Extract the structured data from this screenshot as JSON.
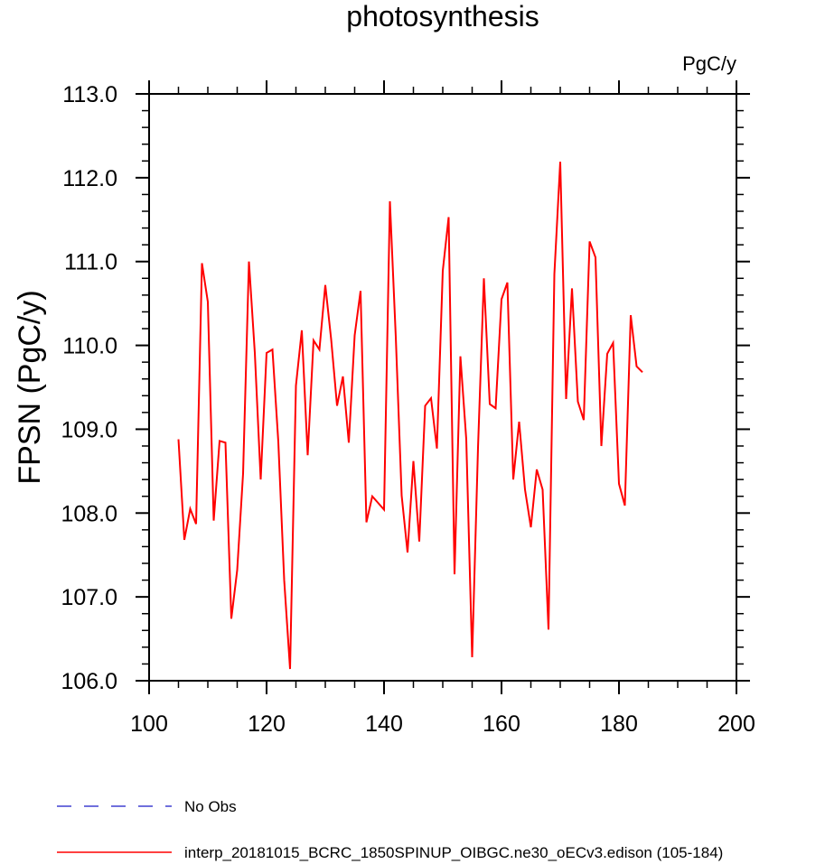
{
  "chart_data": {
    "type": "line",
    "title": "photosynthesis",
    "units_label": "PgC/y",
    "ylabel": "FPSN  (PgC/y)",
    "xlabel": "",
    "xlim": [
      100,
      200
    ],
    "ylim": [
      106.0,
      113.0
    ],
    "x_ticks": [
      100,
      120,
      140,
      160,
      180,
      200
    ],
    "y_ticks": [
      106.0,
      107.0,
      108.0,
      109.0,
      110.0,
      111.0,
      112.0,
      113.0
    ],
    "x_tick_labels": [
      "100",
      "120",
      "140",
      "160",
      "180",
      "200"
    ],
    "y_tick_labels": [
      "106.0",
      "107.0",
      "108.0",
      "109.0",
      "110.0",
      "111.0",
      "112.0",
      "113.0"
    ],
    "grid": false,
    "legend_position": "bottom-left",
    "series": [
      {
        "name": "interp_20181015_BCRC_1850SPINUP_OIBGC.ne30_oECv3.edison (105-184)",
        "color": "#ff0000",
        "style": "solid",
        "x": [
          105,
          106,
          107,
          108,
          109,
          110,
          111,
          112,
          113,
          114,
          115,
          116,
          117,
          118,
          119,
          120,
          121,
          122,
          123,
          124,
          125,
          126,
          127,
          128,
          129,
          130,
          131,
          132,
          133,
          134,
          135,
          136,
          137,
          138,
          139,
          140,
          141,
          142,
          143,
          144,
          145,
          146,
          147,
          148,
          149,
          150,
          151,
          152,
          153,
          154,
          155,
          156,
          157,
          158,
          159,
          160,
          161,
          162,
          163,
          164,
          165,
          166,
          167,
          168,
          169,
          170,
          171,
          172,
          173,
          174,
          175,
          176,
          177,
          178,
          179,
          180,
          181,
          182,
          183,
          184
        ],
        "values": [
          108.88,
          107.68,
          108.05,
          107.87,
          110.98,
          110.52,
          107.91,
          108.86,
          108.84,
          106.74,
          107.32,
          108.47,
          111.0,
          109.91,
          108.4,
          109.91,
          109.95,
          108.85,
          107.2,
          106.14,
          109.52,
          110.18,
          108.69,
          110.06,
          109.95,
          110.72,
          110.07,
          109.28,
          109.63,
          108.84,
          110.12,
          110.65,
          107.89,
          108.2,
          108.12,
          108.04,
          111.72,
          110.1,
          108.21,
          107.53,
          108.62,
          107.66,
          109.28,
          109.37,
          108.77,
          110.89,
          111.53,
          107.27,
          109.87,
          108.88,
          106.28,
          108.78,
          110.8,
          109.3,
          109.25,
          110.55,
          110.75,
          108.4,
          109.09,
          108.28,
          107.83,
          108.52,
          108.28,
          106.61,
          110.85,
          112.19,
          109.36,
          110.68,
          109.33,
          109.11,
          111.24,
          111.05,
          108.8,
          109.9,
          110.03,
          108.35,
          108.09,
          110.36,
          109.75,
          109.68
        ]
      },
      {
        "name": "No Obs",
        "color": "#4040d0",
        "style": "dashed",
        "x": [],
        "values": []
      }
    ]
  }
}
